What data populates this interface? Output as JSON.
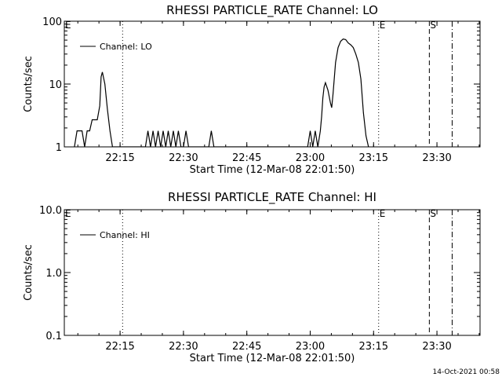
{
  "chart_data": [
    {
      "type": "line",
      "title": "RHESSI PARTICLE_RATE Channel: LO",
      "xlabel": "Start Time (12-Mar-08 22:01:50)",
      "ylabel": "Counts/sec",
      "yscale": "log",
      "ylim": [
        1,
        100
      ],
      "yticks": [
        1,
        10,
        100
      ],
      "ytick_labels": [
        "1",
        "10",
        "100"
      ],
      "xlim_minutes": [
        22.03,
        23.67
      ],
      "xticks_min": [
        22.25,
        22.5,
        22.75,
        23.0,
        23.25,
        23.5
      ],
      "xtick_labels": [
        "22:15",
        "22:30",
        "22:45",
        "23:00",
        "23:15",
        "23:30"
      ],
      "legend": "Channel: LO",
      "legend_position": "top-left",
      "grid": false,
      "series": [
        {
          "points": [
            [
              22.07,
              1
            ],
            [
              22.08,
              1.8
            ],
            [
              22.1,
              1.8
            ],
            [
              22.11,
              1
            ],
            [
              22.12,
              1.8
            ],
            [
              22.13,
              1.8
            ],
            [
              22.14,
              2.7
            ],
            [
              22.16,
              2.7
            ],
            [
              22.17,
              4.5
            ],
            [
              22.175,
              13
            ],
            [
              22.18,
              15.5
            ],
            [
              22.19,
              10
            ],
            [
              22.2,
              4
            ],
            [
              22.21,
              1.8
            ],
            [
              22.22,
              1
            ],
            [
              22.35,
              1
            ],
            [
              22.36,
              1.8
            ],
            [
              22.37,
              1
            ],
            [
              22.38,
              1.8
            ],
            [
              22.39,
              1
            ],
            [
              22.4,
              1.8
            ],
            [
              22.41,
              1
            ],
            [
              22.42,
              1.8
            ],
            [
              22.43,
              1
            ],
            [
              22.44,
              1.8
            ],
            [
              22.45,
              1
            ],
            [
              22.46,
              1.8
            ],
            [
              22.47,
              1
            ],
            [
              22.48,
              1.8
            ],
            [
              22.49,
              1
            ],
            [
              22.5,
              1
            ],
            [
              22.51,
              1.8
            ],
            [
              22.52,
              1
            ],
            [
              22.6,
              1
            ],
            [
              22.61,
              1.8
            ],
            [
              22.62,
              1
            ],
            [
              22.99,
              1
            ],
            [
              23.0,
              1.8
            ],
            [
              23.01,
              1
            ],
            [
              23.02,
              1.8
            ],
            [
              23.03,
              1
            ],
            [
              23.04,
              1.8
            ],
            [
              23.045,
              3
            ],
            [
              23.05,
              6
            ],
            [
              23.055,
              9
            ],
            [
              23.06,
              10.5
            ],
            [
              23.07,
              8
            ],
            [
              23.08,
              5
            ],
            [
              23.085,
              4.2
            ],
            [
              23.09,
              7
            ],
            [
              23.1,
              22
            ],
            [
              23.11,
              38
            ],
            [
              23.12,
              48
            ],
            [
              23.13,
              52
            ],
            [
              23.14,
              51
            ],
            [
              23.15,
              45
            ],
            [
              23.16,
              42
            ],
            [
              23.17,
              38
            ],
            [
              23.18,
              30
            ],
            [
              23.19,
              22
            ],
            [
              23.2,
              12
            ],
            [
              23.21,
              3.5
            ],
            [
              23.22,
              1.5
            ],
            [
              23.23,
              1
            ]
          ]
        }
      ],
      "vertical_markers": [
        {
          "x": 22.26,
          "style": "dotted",
          "label": "",
          "label_side": "none"
        },
        {
          "x": 23.27,
          "style": "dotted",
          "label": "E",
          "label_side": "right"
        },
        {
          "x": 23.47,
          "style": "dashed",
          "label": "S",
          "label_side": "right"
        },
        {
          "x": 23.56,
          "style": "dashdot",
          "label": "",
          "label_side": "none"
        },
        {
          "x": 22.03,
          "style": "none",
          "label": "E",
          "label_side": "right"
        }
      ]
    },
    {
      "type": "line",
      "title": "RHESSI PARTICLE_RATE Channel: HI",
      "xlabel": "Start Time (12-Mar-08 22:01:50)",
      "ylabel": "Counts/sec",
      "yscale": "log",
      "ylim": [
        0.1,
        10
      ],
      "yticks": [
        0.1,
        1,
        10
      ],
      "ytick_labels": [
        "0.1",
        "1.0",
        "10.0"
      ],
      "xlim_minutes": [
        22.03,
        23.67
      ],
      "xticks_min": [
        22.25,
        22.5,
        22.75,
        23.0,
        23.25,
        23.5
      ],
      "xtick_labels": [
        "22:15",
        "22:30",
        "22:45",
        "23:00",
        "23:15",
        "23:30"
      ],
      "legend": "Channel: HI",
      "legend_position": "top-left",
      "grid": false,
      "series": [],
      "vertical_markers": [
        {
          "x": 22.26,
          "style": "dotted",
          "label": "",
          "label_side": "none"
        },
        {
          "x": 23.27,
          "style": "dotted",
          "label": "E",
          "label_side": "right"
        },
        {
          "x": 23.47,
          "style": "dashed",
          "label": "S",
          "label_side": "right"
        },
        {
          "x": 23.56,
          "style": "dashdot",
          "label": "",
          "label_side": "none"
        },
        {
          "x": 22.03,
          "style": "none",
          "label": "E",
          "label_side": "right"
        }
      ]
    }
  ],
  "footer": {
    "timestamp": "14-Oct-2021 00:58"
  }
}
